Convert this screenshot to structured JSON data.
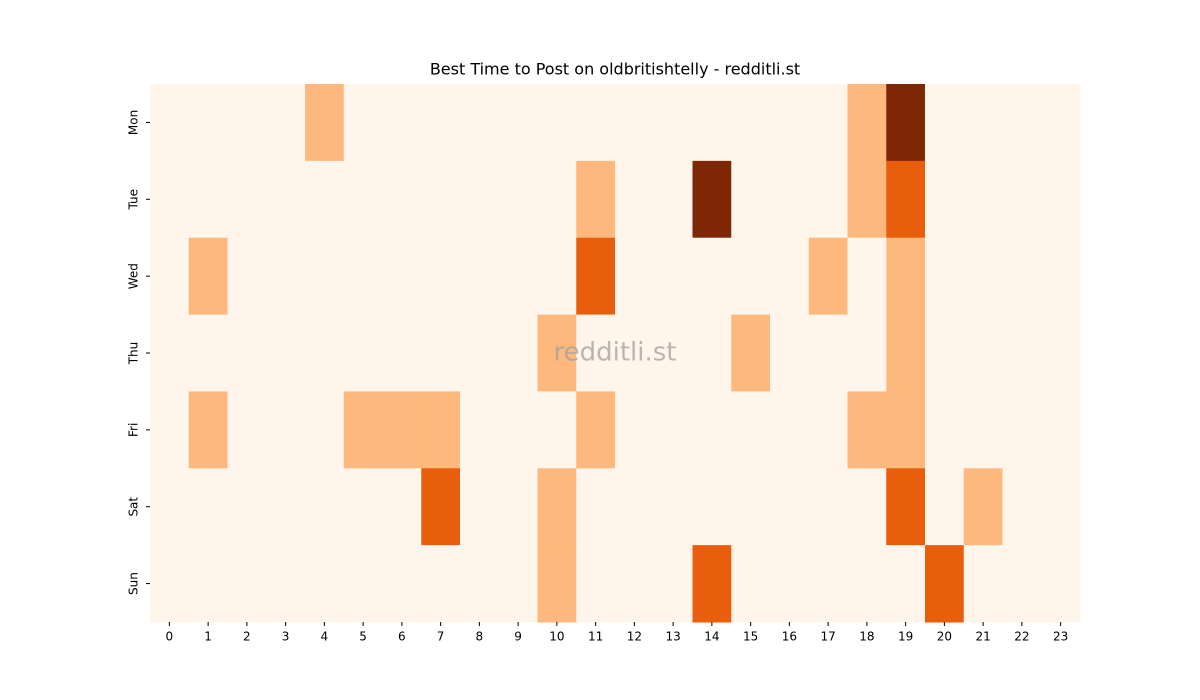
{
  "chart_data": {
    "type": "heatmap",
    "title": "Best Time to Post on oldbritishtelly - redditli.st",
    "watermark": "redditli.st",
    "x": [
      0,
      1,
      2,
      3,
      4,
      5,
      6,
      7,
      8,
      9,
      10,
      11,
      12,
      13,
      14,
      15,
      16,
      17,
      18,
      19,
      20,
      21,
      22,
      23
    ],
    "y": [
      "Mon",
      "Tue",
      "Wed",
      "Thu",
      "Fri",
      "Sat",
      "Sun"
    ],
    "values": [
      [
        0,
        0,
        0,
        0,
        1,
        0,
        0,
        0,
        0,
        0,
        0,
        0,
        0,
        0,
        0,
        0,
        0,
        0,
        1,
        3,
        0,
        0,
        0,
        0
      ],
      [
        0,
        0,
        0,
        0,
        0,
        0,
        0,
        0,
        0,
        0,
        0,
        1,
        0,
        0,
        3,
        0,
        0,
        0,
        1,
        2,
        0,
        0,
        0,
        0
      ],
      [
        0,
        1,
        0,
        0,
        0,
        0,
        0,
        0,
        0,
        0,
        0,
        2,
        0,
        0,
        0,
        0,
        0,
        1,
        0,
        1,
        0,
        0,
        0,
        0
      ],
      [
        0,
        0,
        0,
        0,
        0,
        0,
        0,
        0,
        0,
        0,
        1,
        0,
        0,
        0,
        0,
        1,
        0,
        0,
        0,
        1,
        0,
        0,
        0,
        0
      ],
      [
        0,
        1,
        0,
        0,
        0,
        1,
        1,
        1,
        0,
        0,
        0,
        1,
        0,
        0,
        0,
        0,
        0,
        0,
        1,
        1,
        0,
        0,
        0,
        0
      ],
      [
        0,
        0,
        0,
        0,
        0,
        0,
        0,
        2,
        0,
        0,
        1,
        0,
        0,
        0,
        0,
        0,
        0,
        0,
        0,
        2,
        0,
        1,
        0,
        0
      ],
      [
        0,
        0,
        0,
        0,
        0,
        0,
        0,
        0,
        0,
        0,
        1,
        0,
        0,
        0,
        2,
        0,
        0,
        0,
        0,
        0,
        2,
        0,
        0,
        0
      ]
    ],
    "zlim": [
      0,
      3
    ],
    "color_scale": [
      "#fff5eb",
      "#fdb97d",
      "#e95e0d",
      "#7f2704"
    ]
  }
}
